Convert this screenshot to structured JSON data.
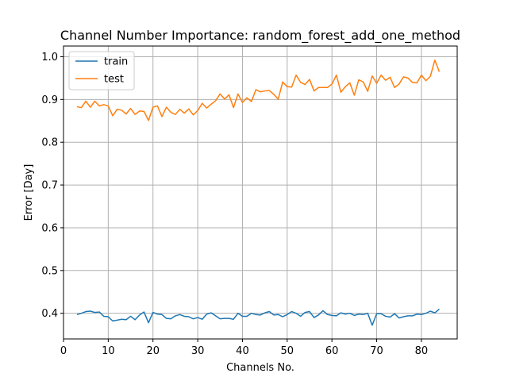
{
  "chart_data": {
    "type": "line",
    "title": "Channel Number Importance: random_forest_add_one_method",
    "xlabel": "Channels No.",
    "ylabel": "Error [Day]",
    "xlim": [
      0,
      88
    ],
    "ylim": [
      0.34,
      1.025
    ],
    "xticks": [
      0,
      10,
      20,
      30,
      40,
      50,
      60,
      70,
      80
    ],
    "yticks": [
      0.4,
      0.5,
      0.6,
      0.7,
      0.8,
      0.9,
      1.0
    ],
    "ytick_labels": [
      "0.4",
      "0.5",
      "0.6",
      "0.7",
      "0.8",
      "0.9",
      "1.0"
    ],
    "grid": true,
    "legend_position": "top-left",
    "x": [
      3,
      4,
      5,
      6,
      7,
      8,
      9,
      10,
      11,
      12,
      13,
      14,
      15,
      16,
      17,
      18,
      19,
      20,
      21,
      22,
      23,
      24,
      25,
      26,
      27,
      28,
      29,
      30,
      31,
      32,
      33,
      34,
      35,
      36,
      37,
      38,
      39,
      40,
      41,
      42,
      43,
      44,
      45,
      46,
      47,
      48,
      49,
      50,
      51,
      52,
      53,
      54,
      55,
      56,
      57,
      58,
      59,
      60,
      61,
      62,
      63,
      64,
      65,
      66,
      67,
      68,
      69,
      70,
      71,
      72,
      73,
      74,
      75,
      76,
      77,
      78,
      79,
      80,
      81,
      82,
      83,
      84
    ],
    "series": [
      {
        "name": "train",
        "color": "#1f77b4",
        "values": [
          0.397,
          0.4,
          0.404,
          0.405,
          0.402,
          0.403,
          0.393,
          0.392,
          0.382,
          0.384,
          0.386,
          0.385,
          0.393,
          0.385,
          0.396,
          0.403,
          0.378,
          0.402,
          0.398,
          0.397,
          0.388,
          0.387,
          0.394,
          0.397,
          0.393,
          0.392,
          0.387,
          0.39,
          0.386,
          0.398,
          0.401,
          0.394,
          0.387,
          0.388,
          0.388,
          0.386,
          0.4,
          0.393,
          0.393,
          0.4,
          0.397,
          0.396,
          0.401,
          0.404,
          0.396,
          0.397,
          0.392,
          0.397,
          0.404,
          0.4,
          0.393,
          0.402,
          0.404,
          0.39,
          0.396,
          0.406,
          0.397,
          0.395,
          0.394,
          0.401,
          0.398,
          0.4,
          0.395,
          0.398,
          0.397,
          0.4,
          0.372,
          0.399,
          0.399,
          0.393,
          0.391,
          0.399,
          0.389,
          0.392,
          0.394,
          0.394,
          0.398,
          0.397,
          0.4,
          0.405,
          0.401,
          0.41
        ]
      },
      {
        "name": "test",
        "color": "#ff7f0e",
        "values": [
          0.883,
          0.881,
          0.896,
          0.882,
          0.896,
          0.885,
          0.888,
          0.885,
          0.862,
          0.877,
          0.875,
          0.866,
          0.879,
          0.865,
          0.873,
          0.872,
          0.851,
          0.882,
          0.885,
          0.86,
          0.882,
          0.87,
          0.865,
          0.877,
          0.868,
          0.878,
          0.864,
          0.874,
          0.891,
          0.88,
          0.889,
          0.897,
          0.913,
          0.901,
          0.911,
          0.881,
          0.913,
          0.893,
          0.904,
          0.895,
          0.923,
          0.918,
          0.92,
          0.921,
          0.912,
          0.901,
          0.941,
          0.93,
          0.929,
          0.957,
          0.94,
          0.935,
          0.947,
          0.92,
          0.928,
          0.928,
          0.928,
          0.936,
          0.957,
          0.917,
          0.93,
          0.939,
          0.91,
          0.946,
          0.941,
          0.919,
          0.955,
          0.938,
          0.957,
          0.945,
          0.952,
          0.928,
          0.936,
          0.953,
          0.95,
          0.94,
          0.939,
          0.957,
          0.944,
          0.954,
          0.992,
          0.965
        ]
      }
    ]
  }
}
